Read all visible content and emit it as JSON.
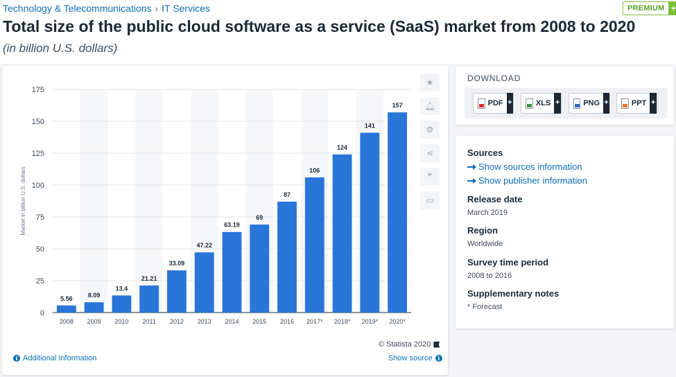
{
  "breadcrumb": [
    "Technology & Telecommunications",
    "IT Services"
  ],
  "breadcrumb_sep": "›",
  "premium": {
    "label": "PREMIUM",
    "plus": "+"
  },
  "page_title": "Total size of the public cloud software as a service (SaaS) market from 2008 to 2020",
  "page_subtitle": "(in billion U.S. dollars)",
  "chart_data": {
    "type": "bar",
    "categories": [
      "2008",
      "2009",
      "2010",
      "2011",
      "2012",
      "2013",
      "2014",
      "2015",
      "2016",
      "2017*",
      "2018*",
      "2019*",
      "2020*"
    ],
    "values": [
      5.56,
      8.09,
      13.4,
      21.21,
      33.09,
      47.22,
      63.19,
      69,
      87,
      106,
      124,
      141,
      157
    ],
    "value_labels": [
      "5.56",
      "8.09",
      "13.4",
      "21.21",
      "33.09",
      "47.22",
      "63.19",
      "69",
      "87",
      "106",
      "124",
      "141",
      "157"
    ],
    "ylabel": "Market in billion U.S. dollars",
    "ylim": [
      0,
      175
    ],
    "yticks": [
      0,
      25,
      50,
      75,
      100,
      125,
      150,
      175
    ],
    "bar_color": "#2a75d8",
    "grid": true,
    "alternate_column_shading": true
  },
  "chart_tools": [
    "star-icon",
    "bell-icon",
    "gear-icon",
    "share-icon",
    "quote-icon",
    "print-icon"
  ],
  "copyright": "© Statista 2020",
  "additional_info": "Additional Information",
  "show_source": "Show source",
  "download": {
    "title": "DOWNLOAD",
    "buttons": [
      {
        "label": "PDF",
        "icon": "pdf-file-icon"
      },
      {
        "label": "XLS",
        "icon": "xls-file-icon"
      },
      {
        "label": "PNG",
        "icon": "png-file-icon"
      },
      {
        "label": "PPT",
        "icon": "ppt-file-icon"
      }
    ],
    "plus": "+"
  },
  "sources": {
    "title": "Sources",
    "links": [
      "Show sources information",
      "Show publisher information"
    ]
  },
  "release_date": {
    "title": "Release date",
    "value": "March 2019"
  },
  "region": {
    "title": "Region",
    "value": "Worldwide"
  },
  "survey_period": {
    "title": "Survey time period",
    "value": "2008 to 2016"
  },
  "supplementary": {
    "title": "Supplementary notes",
    "value": "* Forecast"
  },
  "colors": {
    "accent": "#0f6fb3",
    "bar": "#2a75d8",
    "premium": "#7bbf3a",
    "dark": "#1c2833"
  }
}
